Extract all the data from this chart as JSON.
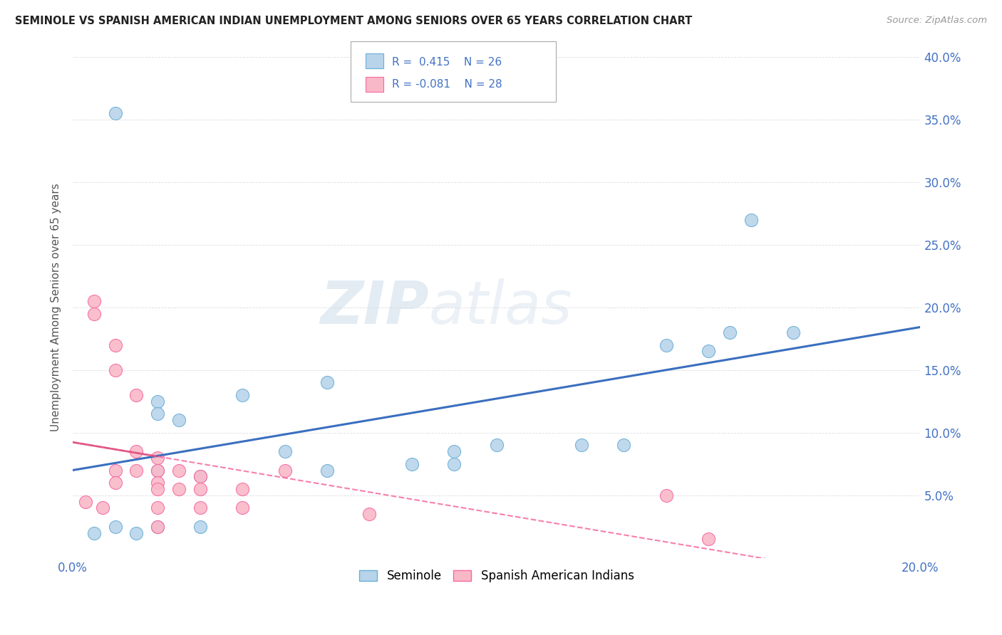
{
  "title": "SEMINOLE VS SPANISH AMERICAN INDIAN UNEMPLOYMENT AMONG SENIORS OVER 65 YEARS CORRELATION CHART",
  "source": "Source: ZipAtlas.com",
  "ylabel": "Unemployment Among Seniors over 65 years",
  "r1": 0.415,
  "n1": 26,
  "r2": -0.081,
  "n2": 28,
  "legend_label1": "Seminole",
  "legend_label2": "Spanish American Indians",
  "xlim": [
    0.0,
    0.2
  ],
  "ylim": [
    0.0,
    0.4
  ],
  "color_seminole_fill": "#b8d4ea",
  "color_seminole_edge": "#6baed6",
  "color_spanish_fill": "#f9b8c8",
  "color_spanish_edge": "#f768a1",
  "color_line1": "#3a6fbf",
  "color_line2": "#e05080",
  "seminole_x": [
    0.01,
    0.01,
    0.005,
    0.015,
    0.02,
    0.02,
    0.02,
    0.02,
    0.025,
    0.03,
    0.03,
    0.04,
    0.05,
    0.06,
    0.06,
    0.08,
    0.09,
    0.09,
    0.1,
    0.12,
    0.13,
    0.14,
    0.15,
    0.155,
    0.16,
    0.17
  ],
  "seminole_y": [
    0.355,
    0.025,
    0.02,
    0.02,
    0.125,
    0.115,
    0.07,
    0.025,
    0.11,
    0.065,
    0.025,
    0.13,
    0.085,
    0.14,
    0.07,
    0.075,
    0.085,
    0.075,
    0.09,
    0.09,
    0.09,
    0.17,
    0.165,
    0.18,
    0.27,
    0.18
  ],
  "spanish_x": [
    0.003,
    0.005,
    0.005,
    0.007,
    0.01,
    0.01,
    0.01,
    0.01,
    0.015,
    0.015,
    0.015,
    0.02,
    0.02,
    0.02,
    0.02,
    0.02,
    0.02,
    0.025,
    0.025,
    0.03,
    0.03,
    0.03,
    0.04,
    0.04,
    0.05,
    0.07,
    0.14,
    0.15
  ],
  "spanish_y": [
    0.045,
    0.205,
    0.195,
    0.04,
    0.17,
    0.15,
    0.07,
    0.06,
    0.13,
    0.085,
    0.07,
    0.08,
    0.07,
    0.06,
    0.055,
    0.04,
    0.025,
    0.07,
    0.055,
    0.065,
    0.055,
    0.04,
    0.055,
    0.04,
    0.07,
    0.035,
    0.05,
    0.015
  ],
  "watermark_zip": "ZIP",
  "watermark_atlas": "atlas",
  "background_color": "#ffffff",
  "grid_color": "#dddddd",
  "tick_color": "#4472c4",
  "title_color": "#222222",
  "source_color": "#999999",
  "ylabel_color": "#555555"
}
